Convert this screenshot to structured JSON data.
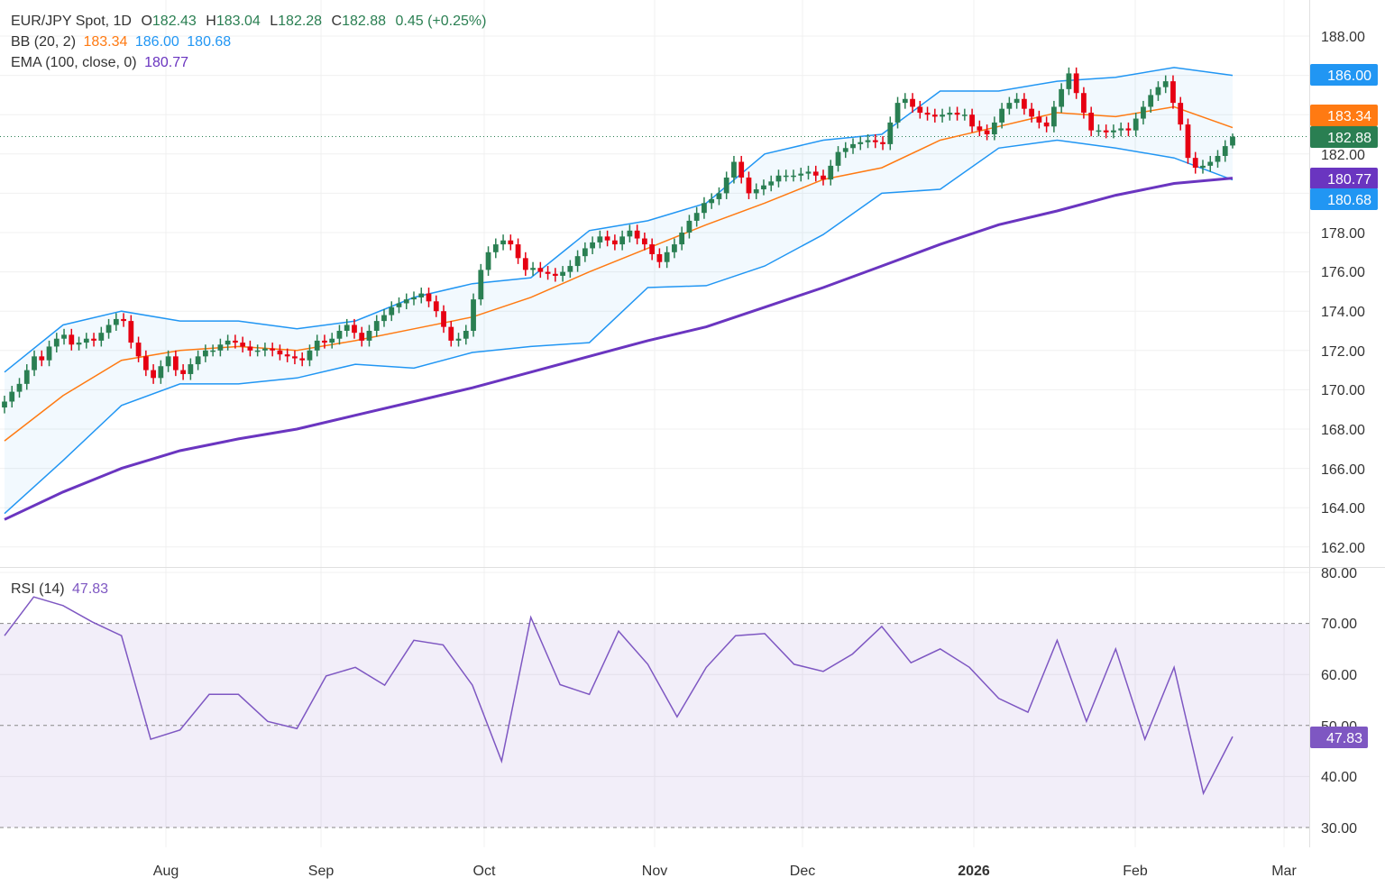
{
  "legend": {
    "symbol": "EUR/JPY Spot, 1D",
    "o_label": "O",
    "open": "182.43",
    "h_label": "H",
    "high": "183.04",
    "l_label": "L",
    "low": "182.28",
    "c_label": "C",
    "close": "182.88",
    "change": "0.45 (+0.25%)",
    "bb_label": "BB (20, 2)",
    "bb_mid": "183.34",
    "bb_upper": "186.00",
    "bb_lower": "180.68",
    "ema_label": "EMA (100, close, 0)",
    "ema": "180.77",
    "rsi_label": "RSI (14)",
    "rsi": "47.83"
  },
  "colors": {
    "up": "#2a7f52",
    "down": "#e60012",
    "bb_band": "#2196f3",
    "bb_mid": "#ff7a12",
    "ema": "#6a35c0",
    "rsi": "#7e57c2",
    "last": "#2a7f52"
  },
  "price_tags": {
    "bb_upper": "186.00",
    "bb_mid": "183.34",
    "last": "182.88",
    "ema": "180.77",
    "bb_lower": "180.68",
    "rsi": "47.83"
  },
  "chart_data": [
    {
      "type": "candlestick",
      "title": "EUR/JPY Spot, 1D",
      "x_tick_labels": [
        "Aug",
        "Sep",
        "Oct",
        "Nov",
        "Dec",
        "2026",
        "Feb",
        "Mar"
      ],
      "y_ticks": [
        "188.00",
        "182.00",
        "178.00",
        "176.00",
        "174.00",
        "172.00",
        "170.00",
        "168.00",
        "166.00",
        "164.00",
        "162.00"
      ],
      "ylim": [
        161.5,
        189
      ],
      "grid": true,
      "closes": [
        169.4,
        169.9,
        170.3,
        171.0,
        171.7,
        171.5,
        172.2,
        172.6,
        172.8,
        172.3,
        172.4,
        172.6,
        172.5,
        172.9,
        173.3,
        173.6,
        173.5,
        172.4,
        171.7,
        171.0,
        170.6,
        171.2,
        171.7,
        171.0,
        170.8,
        171.3,
        171.7,
        172.0,
        172.0,
        172.3,
        172.5,
        172.4,
        172.2,
        172.0,
        172.0,
        172.1,
        172.0,
        171.8,
        171.7,
        171.6,
        171.5,
        172.0,
        172.5,
        172.4,
        172.6,
        173.0,
        173.3,
        172.9,
        172.5,
        173.0,
        173.5,
        173.8,
        174.2,
        174.4,
        174.6,
        174.7,
        174.9,
        174.5,
        174.0,
        173.2,
        172.5,
        172.6,
        173.0,
        174.6,
        176.1,
        177.0,
        177.4,
        177.6,
        177.4,
        176.7,
        176.1,
        176.2,
        176.0,
        175.9,
        175.8,
        176.0,
        176.3,
        176.8,
        177.2,
        177.5,
        177.8,
        177.6,
        177.4,
        177.8,
        178.1,
        177.7,
        177.4,
        176.9,
        176.5,
        177.0,
        177.4,
        178.0,
        178.6,
        179.0,
        179.5,
        179.7,
        180.0,
        180.8,
        181.6,
        180.8,
        180.0,
        180.2,
        180.4,
        180.6,
        180.9,
        180.9,
        180.9,
        181.0,
        181.1,
        180.9,
        180.7,
        181.4,
        182.1,
        182.3,
        182.5,
        182.6,
        182.7,
        182.6,
        182.5,
        183.6,
        184.6,
        184.8,
        184.4,
        184.1,
        184.0,
        183.9,
        184.0,
        184.1,
        184.0,
        184.0,
        183.4,
        183.2,
        183.0,
        183.6,
        184.3,
        184.6,
        184.8,
        184.3,
        183.9,
        183.6,
        183.4,
        184.4,
        185.3,
        186.1,
        185.1,
        184.1,
        183.2,
        183.2,
        183.1,
        183.2,
        183.3,
        183.2,
        183.8,
        184.4,
        185.0,
        185.4,
        185.7,
        184.6,
        183.5,
        181.8,
        181.3,
        181.4,
        181.6,
        181.9,
        182.4,
        182.88
      ],
      "last_ohlc": {
        "open": 182.43,
        "high": 183.04,
        "low": 182.28,
        "close": 182.88
      },
      "bb_upper": [
        170.9,
        173.3,
        174.0,
        173.5,
        173.5,
        173.1,
        173.5,
        174.7,
        175.4,
        175.7,
        178.1,
        178.6,
        179.5,
        182.0,
        182.7,
        183.0,
        185.2,
        185.2,
        185.7,
        185.9,
        186.4,
        186.0
      ],
      "bb_mid": [
        167.4,
        169.7,
        171.5,
        172.0,
        172.2,
        172.0,
        172.5,
        173.1,
        173.7,
        174.7,
        176.0,
        177.2,
        178.4,
        179.5,
        180.7,
        181.3,
        182.7,
        183.4,
        184.1,
        183.9,
        184.4,
        183.34
      ],
      "bb_lower": [
        163.7,
        166.4,
        169.2,
        170.3,
        170.3,
        170.6,
        171.3,
        171.1,
        171.9,
        172.2,
        172.4,
        175.2,
        175.3,
        176.3,
        177.9,
        180.0,
        180.2,
        182.3,
        182.7,
        182.3,
        181.8,
        180.68
      ],
      "ema100": [
        163.4,
        164.8,
        166.0,
        166.9,
        167.5,
        168.0,
        168.7,
        169.4,
        170.1,
        170.9,
        171.7,
        172.5,
        173.2,
        174.2,
        175.2,
        176.3,
        177.4,
        178.4,
        179.1,
        179.9,
        180.5,
        180.77
      ]
    },
    {
      "type": "line",
      "title": "RSI (14)",
      "y_ticks": [
        "80.00",
        "70.00",
        "60.00",
        "50.00",
        "40.00",
        "30.00"
      ],
      "ylim": [
        30,
        80
      ],
      "levels": [
        70,
        50,
        30
      ],
      "values": [
        67.6,
        75.2,
        73.5,
        70.3,
        67.6,
        47.3,
        49.1,
        56.1,
        56.1,
        50.8,
        49.4,
        59.7,
        61.4,
        57.9,
        66.7,
        65.8,
        57.9,
        43,
        71.2,
        58,
        56.1,
        68.5,
        62,
        51.7,
        61.4,
        67.6,
        68,
        62,
        60.6,
        64,
        69.4,
        62.3,
        65,
        61.4,
        55.3,
        52.6,
        66.7,
        50.8,
        65,
        47.3,
        61.4,
        36.7,
        47.83
      ]
    }
  ]
}
